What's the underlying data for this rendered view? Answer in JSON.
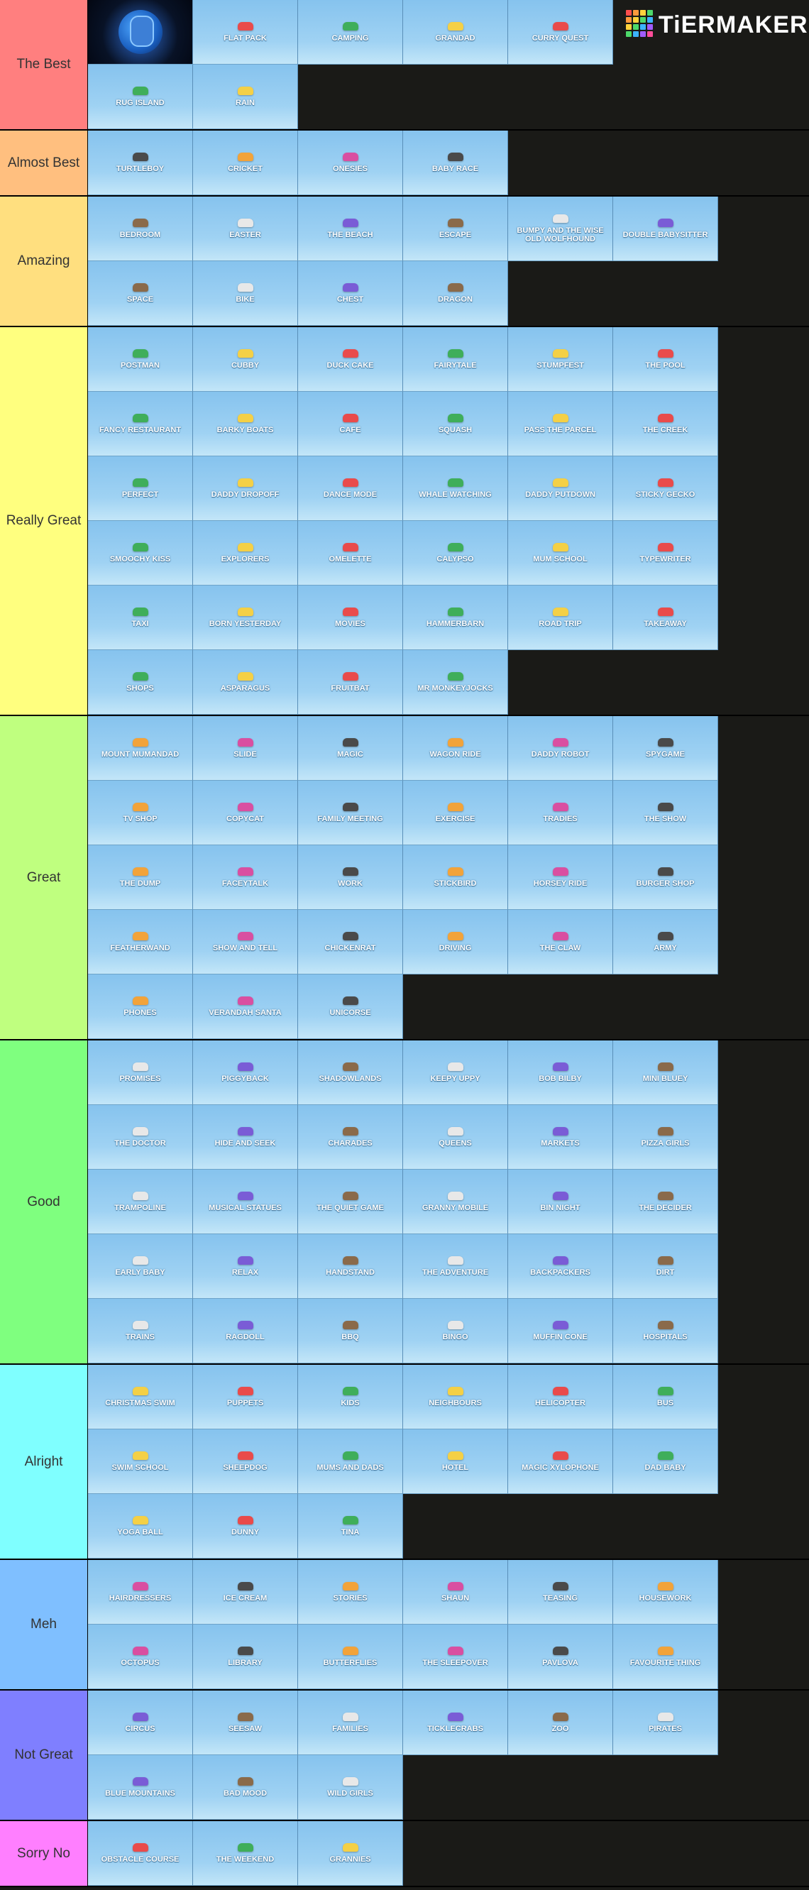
{
  "logo": "TiERMAKER",
  "tiers": [
    {
      "label": "The Best",
      "color": "#ff7f7f",
      "items": [
        "Flat Pack",
        "Camping",
        "Grandad",
        "Curry Quest",
        "Rug Island",
        "Rain"
      ]
    },
    {
      "label": "Almost Best",
      "color": "#ffbf7f",
      "items": [
        "Turtleboy",
        "Cricket",
        "Onesies",
        "Baby Race"
      ]
    },
    {
      "label": "Amazing",
      "color": "#ffdf7f",
      "items": [
        "Bedroom",
        "Easter",
        "The Beach",
        "Escape",
        "Bumpy and the Wise Old Wolfhound",
        "Double Babysitter",
        "Space",
        "Bike",
        "Chest",
        "Dragon"
      ]
    },
    {
      "label": "Really Great",
      "color": "#ffff7f",
      "items": [
        "Postman",
        "Cubby",
        "Duck Cake",
        "Fairytale",
        "Stumpfest",
        "The Pool",
        "Fancy Restaurant",
        "Barky Boats",
        "Cafe",
        "Squash",
        "Pass the Parcel",
        "The Creek",
        "Perfect",
        "Daddy Dropoff",
        "Dance Mode",
        "Whale Watching",
        "Daddy Putdown",
        "Sticky Gecko",
        "Smoochy Kiss",
        "Explorers",
        "Omelette",
        "Calypso",
        "Mum School",
        "Typewriter",
        "Taxi",
        "Born Yesterday",
        "Movies",
        "Hammerbarn",
        "Road Trip",
        "Takeaway",
        "Shops",
        "Asparagus",
        "Fruitbat",
        "Mr Monkeyjocks"
      ]
    },
    {
      "label": "Great",
      "color": "#bfff7f",
      "items": [
        "Mount Mumandad",
        "Slide",
        "Magic",
        "Wagon Ride",
        "Daddy Robot",
        "Spygame",
        "TV Shop",
        "Copycat",
        "Family Meeting",
        "Exercise",
        "Tradies",
        "The Show",
        "The Dump",
        "Faceytalk",
        "Work",
        "Stickbird",
        "Horsey Ride",
        "Burger Shop",
        "Featherwand",
        "Show and Tell",
        "Chickenrat",
        "Driving",
        "The Claw",
        "Army",
        "Phones",
        "Verandah Santa",
        "Unicorse"
      ]
    },
    {
      "label": "Good",
      "color": "#7fff7f",
      "items": [
        "Promises",
        "Piggyback",
        "Shadowlands",
        "Keepy Uppy",
        "Bob Bilby",
        "Mini Bluey",
        "The Doctor",
        "Hide and Seek",
        "Charades",
        "Queens",
        "Markets",
        "Pizza Girls",
        "Trampoline",
        "Musical Statues",
        "The Quiet Game",
        "Granny Mobile",
        "Bin Night",
        "The Decider",
        "Early Baby",
        "Relax",
        "Handstand",
        "The Adventure",
        "Backpackers",
        "Dirt",
        "Trains",
        "Ragdoll",
        "BBQ",
        "Bingo",
        "Muffin Cone",
        "Hospitals"
      ]
    },
    {
      "label": "Alright",
      "color": "#7fffff",
      "items": [
        "Christmas Swim",
        "Puppets",
        "Kids",
        "Neighbours",
        "Helicopter",
        "Bus",
        "Swim School",
        "Sheepdog",
        "Mums and Dads",
        "Hotel",
        "Magic Xylophone",
        "Dad Baby",
        "Yoga Ball",
        "Dunny",
        "Tina"
      ]
    },
    {
      "label": "Meh",
      "color": "#7fbfff",
      "items": [
        "Hairdressers",
        "Ice Cream",
        "Stories",
        "Shaun",
        "Teasing",
        "Housework",
        "Octopus",
        "Library",
        "Butterflies",
        "The Sleepover",
        "Pavlova",
        "Favourite Thing"
      ]
    },
    {
      "label": "Not Great",
      "color": "#7f7fff",
      "items": [
        "Circus",
        "Seesaw",
        "Families",
        "Ticklecrabs",
        "Zoo",
        "Pirates",
        "Blue Mountains",
        "Bad Mood",
        "Wild Girls"
      ]
    },
    {
      "label": "Sorry No",
      "color": "#ff7fff",
      "items": [
        "Obstacle Course",
        "The Weekend",
        "Grannies"
      ]
    }
  ]
}
